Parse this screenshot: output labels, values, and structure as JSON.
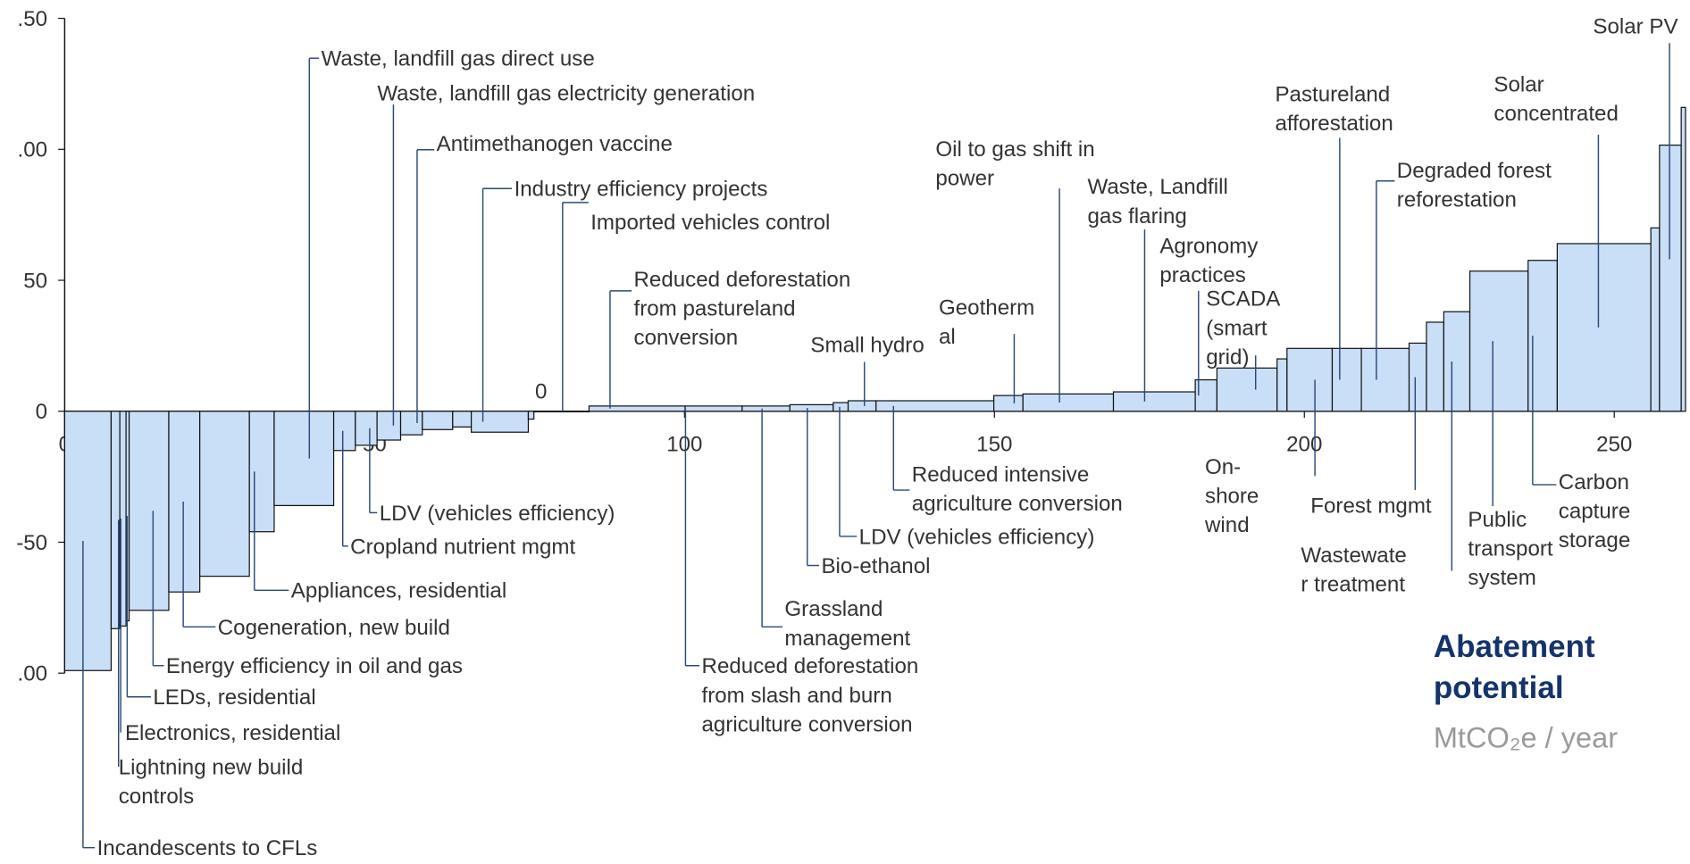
{
  "chart_data": {
    "type": "macc",
    "title": "Abatement\npotential",
    "subtitle": "MtCO₂e / year",
    "annotations": [
      "0"
    ],
    "color": "#c9dff7",
    "categories": [
      "Incandescents to CFLs",
      "Lightning new build\ncontrols",
      "Electronics, residential",
      "LEDs, residential",
      "Energy efficiency in oil and gas",
      "Cogeneration, new build",
      null,
      "Appliances, residential",
      "Waste, landfill gas direct use",
      "Cropland nutrient mgmt",
      "LDV (vehicles efficiency)",
      "Waste, landfill gas electricity generation",
      "Antimethanogen  vaccine",
      null,
      null,
      "Industry efficiency projects",
      null,
      "Imported vehicles control",
      "Reduced deforestation\nfrom pastureland\nconversion",
      "Reduced deforestation\nfrom slash and burn\nagriculture conversion",
      "Grassland\nmanagement",
      "Bio-ethanol",
      "LDV (vehicles efficiency)",
      "Small hydro",
      "Reduced intensive\nagriculture conversion",
      "Geotherm\nal",
      "Oil to gas shift in\npower",
      "Waste, Landfill\ngas flaring",
      "Agronomy\npractices",
      "SCADA\n(smart\ngrid)",
      null,
      "On-\nshore\nwind",
      "Pastureland\nafforestation",
      "Degraded forest\nreforestation",
      "Forest mgmt",
      null,
      "Wastewate\nr treatment",
      "Public\ntransport\nsystem",
      "Carbon\ncapture\nstorage",
      "Solar\nconcentrated",
      null,
      null,
      "Solar PV"
    ],
    "widths": [
      7.5,
      1.4,
      1.0,
      0.5,
      6.4,
      5.0,
      8.0,
      4.0,
      9.6,
      3.5,
      3.5,
      3.8,
      3.5,
      4.9,
      3.0,
      9.2,
      0.9,
      8.9,
      15.5,
      9.2,
      7.7,
      7.0,
      2.4,
      4.5,
      19.0,
      4.7,
      14.6,
      13.2,
      3.5,
      9.7,
      1.6,
      7.3,
      4.7,
      7.7,
      2.8,
      2.8,
      4.2,
      9.4,
      4.7,
      15.1,
      1.4,
      3.5,
      0.7
    ],
    "values": [
      -99,
      -83,
      -82,
      -80,
      -76,
      -69,
      -63,
      -46,
      -36,
      -15,
      -13,
      -11,
      -9,
      -7,
      -6,
      -8,
      -3,
      0,
      2,
      2,
      2,
      2.5,
      3.3,
      4,
      4,
      6,
      6.6,
      7.4,
      12,
      16.5,
      20,
      24,
      24,
      24,
      26,
      34,
      38,
      53.5,
      57.6,
      64,
      70,
      101.6,
      116
    ],
    "xlim": [
      0,
      261
    ],
    "xticks": [
      0,
      50,
      100,
      150,
      200,
      250
    ],
    "ylim": [
      -100,
      150
    ],
    "yticks": [
      {
        "value": -100,
        "label": ".00"
      },
      {
        "value": -50,
        "label": "-50"
      },
      0,
      50,
      {
        "value": 100,
        "label": ".00"
      },
      {
        "value": 150,
        "label": ".50"
      }
    ]
  }
}
